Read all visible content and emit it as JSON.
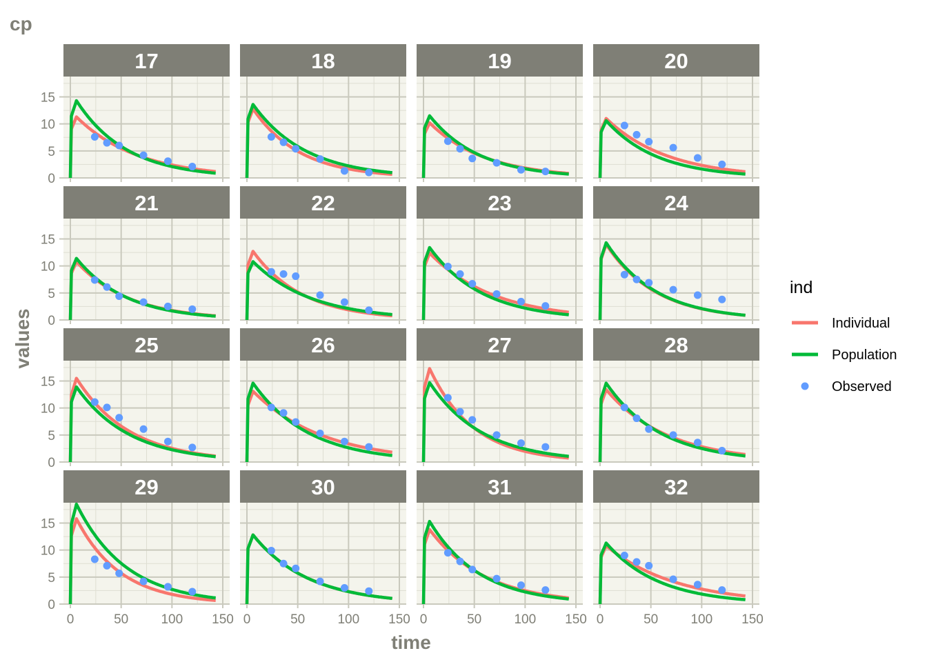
{
  "chart_data": {
    "type": "line",
    "title": "cp",
    "xlabel": "time",
    "ylabel": "values",
    "xlim": [
      0,
      150
    ],
    "ylim": [
      0,
      18
    ],
    "x_ticks": [
      0,
      50,
      100,
      150
    ],
    "y_ticks": [
      0,
      5,
      10,
      15
    ],
    "grid": true,
    "facet_layout": {
      "rows": 4,
      "cols": 4
    },
    "legend": {
      "title": "ind",
      "position": "right",
      "entries": [
        {
          "label": "Individual",
          "kind": "line",
          "color": "#f8766d"
        },
        {
          "label": "Population",
          "kind": "line",
          "color": "#00ba38"
        },
        {
          "label": "Observed",
          "kind": "point",
          "color": "#619cff"
        }
      ]
    },
    "colors": {
      "Individual": "#f8766d",
      "Population": "#00ba38",
      "Observed": "#619cff",
      "strip": "#7f7f76",
      "panel_background": "#f4f4ec",
      "grid": "#c9c9bd"
    },
    "observed_times": [
      24,
      36,
      48,
      72,
      96,
      120
    ],
    "panels": [
      {
        "id": "17",
        "individual": {
          "peak": 11.3,
          "half_life": 42
        },
        "population": {
          "peak": 14.3,
          "half_life": 34
        },
        "observed": [
          7.6,
          6.5,
          6.0,
          4.2,
          3.1,
          2.1
        ]
      },
      {
        "id": "18",
        "individual": {
          "peak": 12.8,
          "half_life": 32
        },
        "population": {
          "peak": 13.6,
          "half_life": 36
        },
        "observed": [
          7.6,
          6.6,
          5.4,
          3.5,
          1.3,
          1.0
        ]
      },
      {
        "id": "19",
        "individual": {
          "peak": 10.2,
          "half_life": 38
        },
        "population": {
          "peak": 11.5,
          "half_life": 34
        },
        "observed": [
          6.8,
          5.4,
          3.6,
          2.8,
          1.5,
          1.2
        ]
      },
      {
        "id": "20",
        "individual": {
          "peak": 11.0,
          "half_life": 42
        },
        "population": {
          "peak": 10.6,
          "half_life": 35
        },
        "observed": [
          9.7,
          8.0,
          6.7,
          5.6,
          3.7,
          2.5
        ]
      },
      {
        "id": "21",
        "individual": {
          "peak": 10.8,
          "half_life": 36
        },
        "population": {
          "peak": 11.4,
          "half_life": 34
        },
        "observed": [
          7.4,
          6.1,
          4.4,
          3.3,
          2.5,
          2.0
        ]
      },
      {
        "id": "22",
        "individual": {
          "peak": 12.7,
          "half_life": 34
        },
        "population": {
          "peak": 10.8,
          "half_life": 40
        },
        "observed": [
          8.9,
          8.5,
          8.1,
          4.6,
          3.3,
          1.8
        ]
      },
      {
        "id": "23",
        "individual": {
          "peak": 12.4,
          "half_life": 44
        },
        "population": {
          "peak": 13.4,
          "half_life": 36
        },
        "observed": [
          9.9,
          8.5,
          6.7,
          4.8,
          3.4,
          2.6
        ]
      },
      {
        "id": "24",
        "individual": {
          "peak": 14.0,
          "half_life": 34
        },
        "population": {
          "peak": 14.3,
          "half_life": 34
        },
        "observed": [
          8.4,
          7.5,
          6.9,
          5.6,
          4.6,
          3.8
        ]
      },
      {
        "id": "25",
        "individual": {
          "peak": 15.5,
          "half_life": 36
        },
        "population": {
          "peak": 13.9,
          "half_life": 36
        },
        "observed": [
          11.1,
          10.1,
          8.2,
          6.1,
          3.8,
          2.7
        ]
      },
      {
        "id": "26",
        "individual": {
          "peak": 13.1,
          "half_life": 48
        },
        "population": {
          "peak": 14.6,
          "half_life": 38
        },
        "observed": [
          10.1,
          9.1,
          7.4,
          5.3,
          3.8,
          2.8
        ]
      },
      {
        "id": "27",
        "individual": {
          "peak": 17.3,
          "half_life": 30
        },
        "population": {
          "peak": 14.7,
          "half_life": 36
        },
        "observed": [
          11.9,
          9.3,
          7.8,
          5.0,
          3.5,
          2.8
        ]
      },
      {
        "id": "28",
        "individual": {
          "peak": 13.4,
          "half_life": 42
        },
        "population": {
          "peak": 14.6,
          "half_life": 37
        },
        "observed": [
          10.1,
          8.1,
          6.1,
          5.0,
          3.6,
          2.1
        ]
      },
      {
        "id": "29",
        "individual": {
          "peak": 15.8,
          "half_life": 30
        },
        "population": {
          "peak": 18.5,
          "half_life": 34
        },
        "observed": [
          8.3,
          7.1,
          5.7,
          4.2,
          3.2,
          2.3
        ]
      },
      {
        "id": "30",
        "individual": {
          "peak": 12.8,
          "half_life": 38
        },
        "population": {
          "peak": 12.8,
          "half_life": 38
        },
        "observed": [
          9.9,
          7.5,
          6.6,
          4.2,
          3.0,
          2.4
        ]
      },
      {
        "id": "31",
        "individual": {
          "peak": 13.8,
          "half_life": 38
        },
        "population": {
          "peak": 15.3,
          "half_life": 34
        },
        "observed": [
          9.5,
          7.9,
          6.4,
          4.7,
          3.5,
          2.6
        ]
      },
      {
        "id": "32",
        "individual": {
          "peak": 10.8,
          "half_life": 48
        },
        "population": {
          "peak": 11.3,
          "half_life": 36
        },
        "observed": [
          9.0,
          7.8,
          7.1,
          4.6,
          3.6,
          2.6
        ]
      }
    ]
  }
}
